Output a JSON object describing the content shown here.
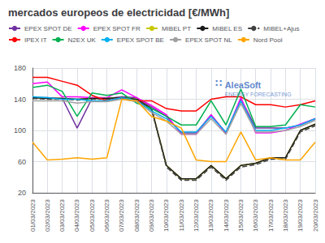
{
  "chart_data": {
    "type": "line",
    "title": "mercados europeos de electricidad [€/MWh]",
    "categories": [
      "01/03/2023",
      "02/03/2023",
      "03/03/2023",
      "04/03/2023",
      "05/03/2023",
      "06/03/2023",
      "07/03/2023",
      "08/03/2023",
      "09/03/2023",
      "10/03/2023",
      "11/03/2023",
      "12/03/2023",
      "13/03/2023",
      "14/03/2023",
      "15/03/2023",
      "16/03/2023",
      "17/03/2023",
      "18/03/2023",
      "19/03/2023",
      "20/03/2023"
    ],
    "series": [
      {
        "name": "EPEX SPOT DE",
        "color": "#7030a0",
        "values": [
          142,
          142,
          141,
          103,
          141,
          141,
          143,
          142,
          130,
          118,
          97,
          97,
          120,
          97,
          141,
          103,
          103,
          103,
          107,
          115
        ]
      },
      {
        "name": "EPEX SPOT FR",
        "color": "#ff00ff",
        "values": [
          160,
          162,
          143,
          143,
          142,
          142,
          152,
          142,
          132,
          120,
          95,
          95,
          120,
          95,
          142,
          97,
          97,
          100,
          108,
          115
        ]
      },
      {
        "name": "MIBEL PT",
        "color": "#c8c800",
        "values": [
          142,
          141,
          141,
          140,
          141,
          141,
          142,
          140,
          128,
          55,
          38,
          38,
          55,
          38,
          55,
          58,
          65,
          65,
          100,
          108
        ]
      },
      {
        "name": "MIBEL ES",
        "color": "#1a1a1a",
        "values": [
          142,
          141,
          141,
          140,
          141,
          141,
          142,
          140,
          128,
          55,
          38,
          38,
          55,
          38,
          55,
          58,
          65,
          65,
          100,
          108
        ]
      },
      {
        "name": "MIBEL+Ajus",
        "color": "#404040",
        "line_style": "dashed",
        "values": [
          141,
          140,
          140,
          139,
          140,
          140,
          141,
          139,
          127,
          53,
          36,
          36,
          53,
          36,
          53,
          56,
          63,
          63,
          98,
          106
        ]
      },
      {
        "name": "IPEX IT",
        "color": "#ff0000",
        "values": [
          168,
          168,
          163,
          158,
          145,
          138,
          142,
          138,
          138,
          128,
          125,
          125,
          140,
          143,
          143,
          133,
          133,
          130,
          133,
          138
        ]
      },
      {
        "name": "N2EX UK",
        "color": "#00b050",
        "values": [
          155,
          158,
          150,
          118,
          148,
          145,
          148,
          135,
          128,
          118,
          107,
          107,
          138,
          107,
          153,
          105,
          105,
          107,
          133,
          130
        ]
      },
      {
        "name": "EPEX SPOT BE",
        "color": "#00b0f0",
        "values": [
          143,
          142,
          140,
          140,
          138,
          138,
          142,
          138,
          125,
          115,
          98,
          98,
          118,
          98,
          138,
          100,
          100,
          103,
          107,
          115
        ]
      },
      {
        "name": "EPEX SPOT NL",
        "color": "#a0a0a0",
        "values": [
          138,
          138,
          138,
          135,
          137,
          137,
          140,
          137,
          123,
          112,
          95,
          95,
          115,
          95,
          135,
          98,
          98,
          100,
          105,
          113
        ]
      },
      {
        "name": "Nord Pool",
        "color": "#ffa500",
        "values": [
          85,
          62,
          63,
          65,
          63,
          65,
          140,
          138,
          118,
          112,
          103,
          62,
          60,
          60,
          98,
          62,
          65,
          62,
          62,
          85
        ]
      }
    ],
    "ylim": [
      20,
      180
    ],
    "yticks": [
      20,
      60,
      100,
      140,
      180
    ],
    "grid": true,
    "legend": "top",
    "annotations": [
      "∷",
      "AleaSoft",
      "ENERGY FORECASTING"
    ]
  }
}
